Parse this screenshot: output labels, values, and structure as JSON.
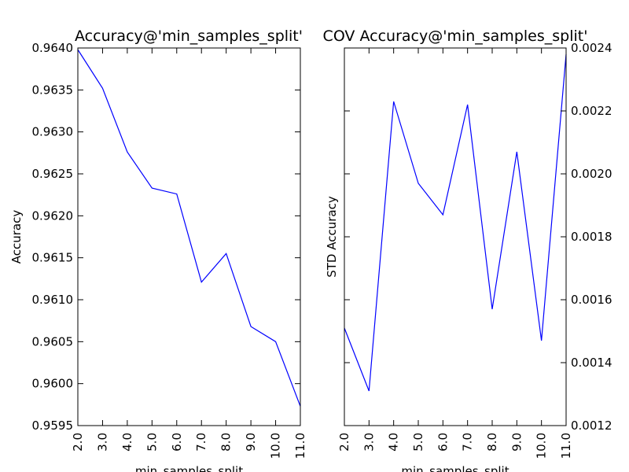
{
  "chart_data": [
    {
      "type": "line",
      "title": "Accuracy@'min_samples_split'",
      "xlabel": "min_samples_split",
      "ylabel": "Accuracy",
      "x": [
        2.0,
        3.0,
        4.0,
        5.0,
        6.0,
        7.0,
        8.0,
        9.0,
        10.0,
        11.0
      ],
      "x_tick_labels": [
        "2.0",
        "3.0",
        "4.0",
        "5.0",
        "6.0",
        "7.0",
        "8.0",
        "9.0",
        "10.0",
        "11.0"
      ],
      "xlim": [
        2.0,
        11.0
      ],
      "ylim": [
        0.9595,
        0.964
      ],
      "y_ticks": [
        0.9595,
        0.96,
        0.9605,
        0.961,
        0.9615,
        0.962,
        0.9625,
        0.963,
        0.9635,
        0.964
      ],
      "y_tick_labels": [
        "0.9595",
        "0.9600",
        "0.9605",
        "0.9610",
        "0.9615",
        "0.9620",
        "0.9625",
        "0.9630",
        "0.9635",
        "0.9640"
      ],
      "y_axis_side": "left",
      "series": [
        {
          "name": "accuracy",
          "color": "#0000ff",
          "values": [
            0.96398,
            0.96352,
            0.96276,
            0.96233,
            0.96226,
            0.96121,
            0.96155,
            0.96068,
            0.9605,
            0.95973
          ]
        }
      ]
    },
    {
      "type": "line",
      "title": "COV Accuracy@'min_samples_split'",
      "xlabel": "min_samples_split",
      "ylabel": "STD Accuracy",
      "x": [
        2.0,
        3.0,
        4.0,
        5.0,
        6.0,
        7.0,
        8.0,
        9.0,
        10.0,
        11.0
      ],
      "x_tick_labels": [
        "2.0",
        "3.0",
        "4.0",
        "5.0",
        "6.0",
        "7.0",
        "8.0",
        "9.0",
        "10.0",
        "11.0"
      ],
      "xlim": [
        2.0,
        11.0
      ],
      "ylim": [
        0.0012,
        0.0024
      ],
      "y_ticks": [
        0.0012,
        0.0014,
        0.0016,
        0.0018,
        0.002,
        0.0022,
        0.0024
      ],
      "y_tick_labels": [
        "0.0012",
        "0.0014",
        "0.0016",
        "0.0018",
        "0.0020",
        "0.0022",
        "0.0024"
      ],
      "y_axis_side": "right",
      "series": [
        {
          "name": "std_accuracy",
          "color": "#0000ff",
          "values": [
            0.00151,
            0.00131,
            0.00223,
            0.00197,
            0.00187,
            0.00222,
            0.00157,
            0.00207,
            0.00147,
            0.00238
          ]
        }
      ]
    }
  ]
}
